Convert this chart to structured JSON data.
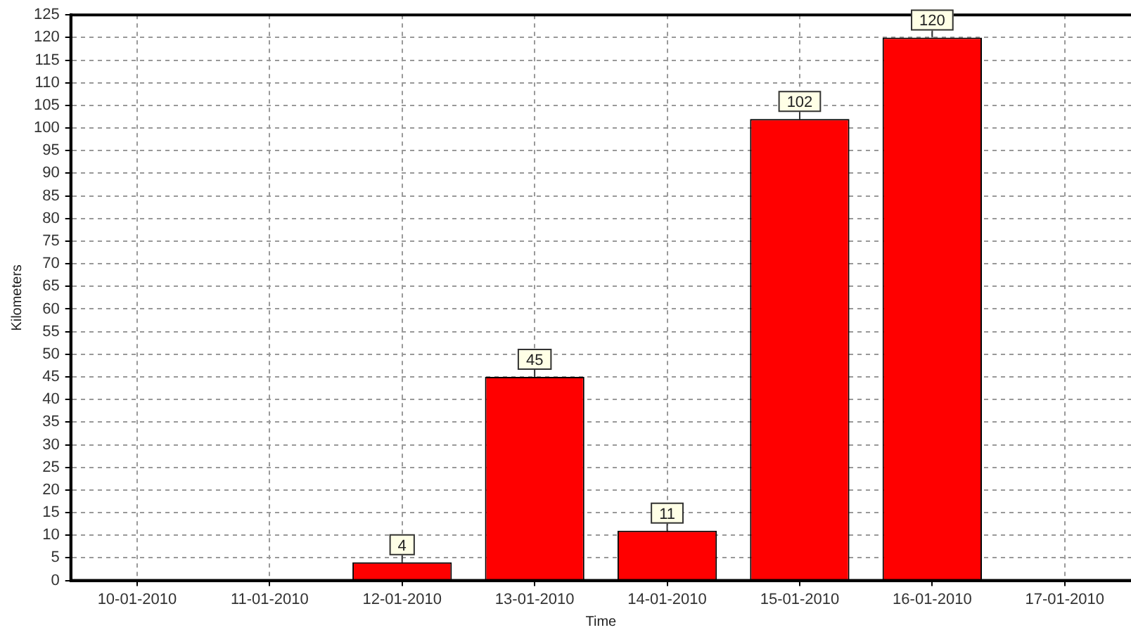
{
  "chart_data": {
    "type": "bar",
    "xlabel": "Time",
    "ylabel": "Kilometers",
    "categories": [
      "10-01-2010",
      "11-01-2010",
      "12-01-2010",
      "13-01-2010",
      "14-01-2010",
      "15-01-2010",
      "16-01-2010",
      "17-01-2010"
    ],
    "values": [
      0,
      0,
      4,
      45,
      11,
      102,
      120,
      0
    ],
    "value_labels": [
      null,
      null,
      "4",
      "45",
      "11",
      "102",
      "120",
      null
    ],
    "color": "#ff0000",
    "ylim": [
      0,
      125
    ],
    "yticks": [
      0,
      5,
      10,
      15,
      20,
      25,
      30,
      35,
      40,
      45,
      50,
      55,
      60,
      65,
      70,
      75,
      80,
      85,
      90,
      95,
      100,
      105,
      110,
      115,
      120,
      125
    ],
    "grid": true,
    "legend": false
  }
}
